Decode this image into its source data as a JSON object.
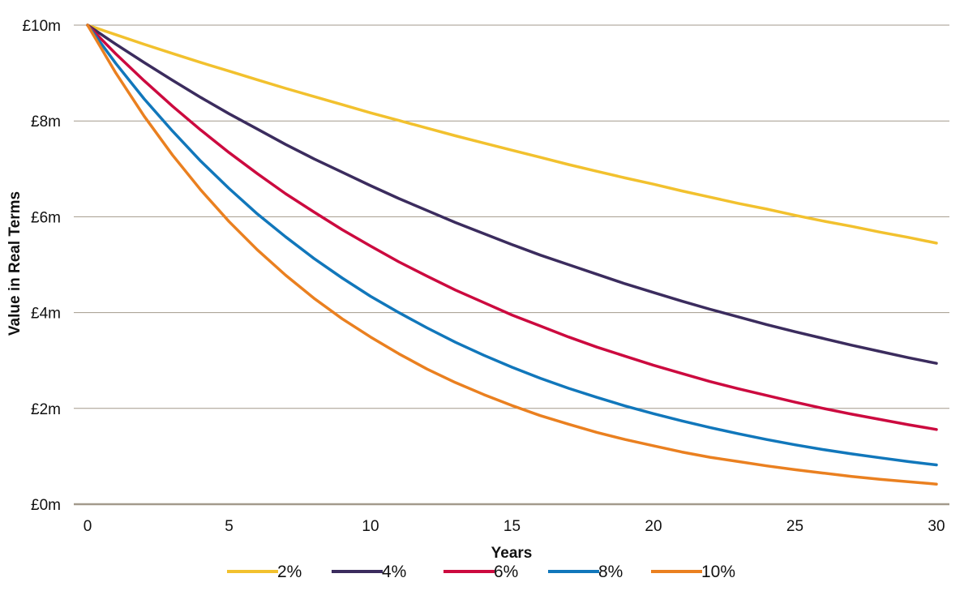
{
  "chart_data": {
    "type": "line",
    "title": "",
    "xlabel": "Years",
    "ylabel": "Value in Real Terms",
    "xlim": [
      0,
      30
    ],
    "ylim": [
      0,
      10
    ],
    "x_ticks": [
      0,
      5,
      10,
      15,
      20,
      25,
      30
    ],
    "x_tick_labels": [
      "0",
      "5",
      "10",
      "15",
      "20",
      "25",
      "30"
    ],
    "y_ticks": [
      0,
      2,
      4,
      6,
      8,
      10
    ],
    "y_tick_labels": [
      "£0m",
      "£2m",
      "£4m",
      "£6m",
      "£8m",
      "£10m"
    ],
    "grid": "horizontal",
    "legend_position": "bottom",
    "x": [
      0,
      1,
      2,
      3,
      4,
      5,
      6,
      7,
      8,
      9,
      10,
      11,
      12,
      13,
      14,
      15,
      16,
      17,
      18,
      19,
      20,
      21,
      22,
      23,
      24,
      25,
      26,
      27,
      28,
      29,
      30
    ],
    "series": [
      {
        "name": "2%",
        "color": "#f2c12e",
        "values": [
          10,
          9.8,
          9.6,
          9.41,
          9.22,
          9.04,
          8.86,
          8.68,
          8.51,
          8.34,
          8.17,
          8.01,
          7.85,
          7.69,
          7.54,
          7.39,
          7.24,
          7.09,
          6.95,
          6.81,
          6.68,
          6.54,
          6.41,
          6.28,
          6.16,
          6.03,
          5.91,
          5.8,
          5.68,
          5.57,
          5.45
        ]
      },
      {
        "name": "4%",
        "color": "#3b2c5e",
        "values": [
          10,
          9.6,
          9.22,
          8.85,
          8.49,
          8.15,
          7.83,
          7.51,
          7.21,
          6.93,
          6.65,
          6.38,
          6.13,
          5.88,
          5.65,
          5.42,
          5.2,
          5,
          4.8,
          4.6,
          4.42,
          4.24,
          4.07,
          3.91,
          3.75,
          3.6,
          3.46,
          3.32,
          3.19,
          3.06,
          2.94
        ]
      },
      {
        "name": "6%",
        "color": "#cc0a3f",
        "values": [
          10,
          9.4,
          8.84,
          8.31,
          7.81,
          7.34,
          6.9,
          6.48,
          6.1,
          5.73,
          5.39,
          5.06,
          4.76,
          4.47,
          4.21,
          3.95,
          3.72,
          3.49,
          3.28,
          3.09,
          2.9,
          2.73,
          2.56,
          2.41,
          2.27,
          2.13,
          2,
          1.88,
          1.77,
          1.66,
          1.56
        ]
      },
      {
        "name": "8%",
        "color": "#1177bb",
        "values": [
          10,
          9.2,
          8.46,
          7.79,
          7.16,
          6.59,
          6.06,
          5.58,
          5.13,
          4.72,
          4.34,
          4,
          3.68,
          3.38,
          3.11,
          2.86,
          2.63,
          2.42,
          2.23,
          2.05,
          1.89,
          1.74,
          1.6,
          1.47,
          1.35,
          1.24,
          1.14,
          1.05,
          0.97,
          0.89,
          0.82
        ]
      },
      {
        "name": "10%",
        "color": "#ea8020",
        "values": [
          10,
          9,
          8.1,
          7.29,
          6.56,
          5.9,
          5.31,
          4.78,
          4.3,
          3.87,
          3.49,
          3.14,
          2.82,
          2.54,
          2.29,
          2.06,
          1.85,
          1.67,
          1.5,
          1.35,
          1.22,
          1.09,
          0.98,
          0.89,
          0.8,
          0.72,
          0.65,
          0.58,
          0.52,
          0.47,
          0.42
        ]
      }
    ]
  }
}
